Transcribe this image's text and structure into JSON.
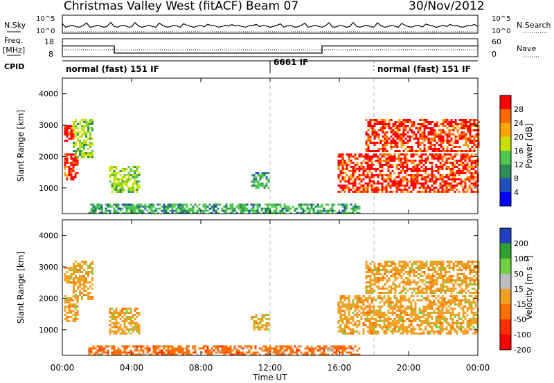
{
  "header": {
    "title": "Christmas Valley West (fitACF)",
    "beam": "Beam 07",
    "date": "30/Nov/2012"
  },
  "panels": {
    "nsky": {
      "label": "N.Sky",
      "right_label": "N.Search",
      "ticks_left": [
        "10^5",
        "10^0"
      ],
      "ticks_right": [
        "10^5",
        "10^0"
      ]
    },
    "freq": {
      "label_top": "Freq.",
      "label_unit": "[MHz]",
      "right_label": "Nave",
      "ticks_left": [
        "18",
        "8"
      ],
      "ticks_right": [
        "60",
        "0"
      ]
    },
    "cpid": {
      "label": "CPID",
      "segments": [
        {
          "text": "normal (fast) 151 IF",
          "start_h": 0
        },
        {
          "text": "6661 IF",
          "start_h": 12
        },
        {
          "text": "normal (fast) 151 IF",
          "start_h": 18
        }
      ]
    }
  },
  "power_panel": {
    "ylabel": "Slant Range [km]",
    "yticks": [
      "4000",
      "3000",
      "2000",
      "1000"
    ],
    "colorbar_label": "Power [dB]",
    "colorbar_ticks": [
      "28",
      "24",
      "20",
      "16",
      "12",
      "8",
      "4"
    ]
  },
  "velocity_panel": {
    "ylabel": "Slant Range [km]",
    "yticks": [
      "4000",
      "3000",
      "2000",
      "1000"
    ],
    "colorbar_label": "Velocity [m s⁻¹]",
    "colorbar_ticks": [
      "200",
      "100",
      "50",
      "15",
      "-15",
      "-50",
      "-100",
      "-200"
    ]
  },
  "xaxis": {
    "label": "Time UT",
    "ticks": [
      "00:00",
      "04:00",
      "08:00",
      "12:00",
      "16:00",
      "20:00",
      "00:00"
    ]
  },
  "chart_data": {
    "type": "heatmap",
    "x_range_hours": [
      0,
      24
    ],
    "y_range_km": [
      180,
      4500
    ],
    "power_colors": [
      "#ff0000",
      "#ff6a00",
      "#ffa500",
      "#c8e000",
      "#50c850",
      "#2e8b57",
      "#2050c0",
      "#0000ff"
    ],
    "velocity_colors": [
      "#2040c0",
      "#30a030",
      "#70d040",
      "#bebebe",
      "#f0a020",
      "#ff7000",
      "#ff3000",
      "#ff0000"
    ],
    "echo_regions": [
      {
        "t0": 0.1,
        "t1": 0.9,
        "r0": 1300,
        "r1": 2100,
        "power_level": 28,
        "velocity_level": -15
      },
      {
        "t0": 0.1,
        "t1": 0.7,
        "r0": 2500,
        "r1": 3000,
        "power_level": 28,
        "velocity_level": -15
      },
      {
        "t0": 0.6,
        "t1": 1.8,
        "r0": 2000,
        "r1": 3200,
        "power_level": 16,
        "velocity_level": -15
      },
      {
        "t0": 2.7,
        "t1": 4.5,
        "r0": 900,
        "r1": 1700,
        "power_level": 16,
        "velocity_level": -15
      },
      {
        "t0": 10.9,
        "t1": 11.9,
        "r0": 1000,
        "r1": 1500,
        "power_level": 12,
        "velocity_level": -15
      },
      {
        "t0": 1.5,
        "t1": 17.2,
        "r0": 200,
        "r1": 500,
        "power_level": 12,
        "velocity_level": -50
      },
      {
        "t0": 15.9,
        "t1": 24.0,
        "r0": 900,
        "r1": 2100,
        "power_level": 28,
        "velocity_level": -15
      },
      {
        "t0": 17.5,
        "t1": 24.0,
        "r0": 2200,
        "r1": 3200,
        "power_level": 28,
        "velocity_level": -15
      }
    ],
    "cpid_changes_h": [
      12,
      18
    ],
    "freq_steps": [
      {
        "t0": 0,
        "t1": 3,
        "mhz": 14
      },
      {
        "t0": 3,
        "t1": 15,
        "mhz": 10
      },
      {
        "t0": 15,
        "t1": 24,
        "mhz": 14
      }
    ]
  }
}
